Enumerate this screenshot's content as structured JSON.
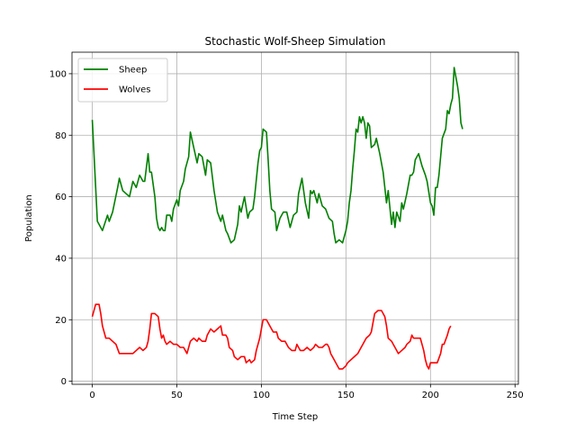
{
  "chart_data": {
    "type": "line",
    "title": "Stochastic Wolf-Sheep Simulation",
    "xlabel": "Time Step",
    "ylabel": "Population",
    "xlim": [
      -12,
      252
    ],
    "ylim": [
      -1,
      107
    ],
    "xticks": [
      0,
      50,
      100,
      150,
      200,
      250
    ],
    "yticks": [
      0,
      20,
      40,
      60,
      80,
      100
    ],
    "grid": true,
    "legend_position": "top-left",
    "series": [
      {
        "name": "Sheep",
        "color": "#008000",
        "points": [
          [
            0,
            85
          ],
          [
            3,
            52
          ],
          [
            6,
            49
          ],
          [
            9,
            54
          ],
          [
            10,
            52
          ],
          [
            12,
            55
          ],
          [
            15,
            63
          ],
          [
            16,
            66
          ],
          [
            18,
            62
          ],
          [
            20,
            61
          ],
          [
            22,
            60
          ],
          [
            24,
            65
          ],
          [
            26,
            63
          ],
          [
            28,
            67
          ],
          [
            30,
            65
          ],
          [
            31,
            65
          ],
          [
            33,
            74
          ],
          [
            34,
            68
          ],
          [
            35,
            68
          ],
          [
            37,
            60
          ],
          [
            38,
            53
          ],
          [
            39,
            50
          ],
          [
            40,
            49
          ],
          [
            41,
            50
          ],
          [
            42,
            49
          ],
          [
            43,
            49
          ],
          [
            44,
            54
          ],
          [
            46,
            54
          ],
          [
            47,
            52
          ],
          [
            48,
            56
          ],
          [
            50,
            59
          ],
          [
            51,
            57
          ],
          [
            52,
            62
          ],
          [
            54,
            65
          ],
          [
            55,
            69
          ],
          [
            57,
            73
          ],
          [
            58,
            81
          ],
          [
            60,
            76
          ],
          [
            62,
            71
          ],
          [
            63,
            74
          ],
          [
            65,
            73
          ],
          [
            67,
            67
          ],
          [
            68,
            72
          ],
          [
            70,
            71
          ],
          [
            72,
            62
          ],
          [
            74,
            55
          ],
          [
            76,
            52
          ],
          [
            77,
            54
          ],
          [
            79,
            49
          ],
          [
            80,
            48
          ],
          [
            82,
            45
          ],
          [
            84,
            46
          ],
          [
            86,
            51
          ],
          [
            87,
            57
          ],
          [
            88,
            55
          ],
          [
            90,
            60
          ],
          [
            92,
            53
          ],
          [
            93,
            55
          ],
          [
            95,
            56
          ],
          [
            96,
            60
          ],
          [
            98,
            71
          ],
          [
            99,
            75
          ],
          [
            100,
            76
          ],
          [
            101,
            82
          ],
          [
            103,
            81
          ],
          [
            104,
            72
          ],
          [
            105,
            62
          ],
          [
            106,
            56
          ],
          [
            108,
            55
          ],
          [
            109,
            49
          ],
          [
            111,
            53
          ],
          [
            113,
            55
          ],
          [
            115,
            55
          ],
          [
            117,
            50
          ],
          [
            119,
            54
          ],
          [
            121,
            55
          ],
          [
            122,
            61
          ],
          [
            124,
            66
          ],
          [
            126,
            58
          ],
          [
            128,
            53
          ],
          [
            129,
            62
          ],
          [
            130,
            61
          ],
          [
            131,
            62
          ],
          [
            133,
            58
          ],
          [
            134,
            61
          ],
          [
            136,
            57
          ],
          [
            138,
            56
          ],
          [
            140,
            53
          ],
          [
            142,
            52
          ],
          [
            143,
            48
          ],
          [
            144,
            45
          ],
          [
            146,
            46
          ],
          [
            148,
            45
          ],
          [
            150,
            49
          ],
          [
            151,
            52
          ],
          [
            152,
            58
          ],
          [
            153,
            62
          ],
          [
            154,
            69
          ],
          [
            155,
            75
          ],
          [
            156,
            82
          ],
          [
            157,
            81
          ],
          [
            158,
            86
          ],
          [
            159,
            84
          ],
          [
            160,
            86
          ],
          [
            161,
            84
          ],
          [
            162,
            79
          ],
          [
            163,
            84
          ],
          [
            164,
            83
          ],
          [
            165,
            76
          ],
          [
            167,
            77
          ],
          [
            168,
            79
          ],
          [
            170,
            74
          ],
          [
            172,
            68
          ],
          [
            174,
            58
          ],
          [
            175,
            62
          ],
          [
            177,
            51
          ],
          [
            178,
            55
          ],
          [
            179,
            50
          ],
          [
            180,
            55
          ],
          [
            182,
            52
          ],
          [
            183,
            58
          ],
          [
            184,
            56
          ],
          [
            186,
            61
          ],
          [
            188,
            67
          ],
          [
            189,
            67
          ],
          [
            190,
            68
          ],
          [
            191,
            72
          ],
          [
            192,
            73
          ],
          [
            193,
            74
          ],
          [
            195,
            70
          ],
          [
            197,
            67
          ],
          [
            198,
            65
          ],
          [
            200,
            58
          ],
          [
            201,
            57
          ],
          [
            202,
            54
          ],
          [
            203,
            63
          ],
          [
            204,
            63
          ],
          [
            205,
            67
          ],
          [
            206,
            73
          ],
          [
            207,
            79
          ],
          [
            209,
            82
          ],
          [
            210,
            88
          ],
          [
            211,
            87
          ],
          [
            212,
            90
          ],
          [
            213,
            92
          ],
          [
            214,
            102
          ],
          [
            215,
            99
          ],
          [
            216,
            96
          ],
          [
            217,
            92
          ],
          [
            218,
            84
          ],
          [
            219,
            82
          ]
        ]
      },
      {
        "name": "Wolves",
        "color": "#ff0000",
        "points": [
          [
            0,
            21
          ],
          [
            2,
            25
          ],
          [
            4,
            25
          ],
          [
            5,
            22
          ],
          [
            6,
            18
          ],
          [
            8,
            14
          ],
          [
            10,
            14
          ],
          [
            12,
            13
          ],
          [
            14,
            12
          ],
          [
            16,
            9
          ],
          [
            20,
            9
          ],
          [
            24,
            9
          ],
          [
            26,
            10
          ],
          [
            28,
            11
          ],
          [
            30,
            10
          ],
          [
            32,
            11
          ],
          [
            33,
            13
          ],
          [
            34,
            17
          ],
          [
            35,
            22
          ],
          [
            37,
            22
          ],
          [
            39,
            21
          ],
          [
            40,
            17
          ],
          [
            41,
            14
          ],
          [
            42,
            15
          ],
          [
            43,
            13
          ],
          [
            44,
            12
          ],
          [
            46,
            13
          ],
          [
            48,
            12
          ],
          [
            50,
            12
          ],
          [
            52,
            11
          ],
          [
            54,
            11
          ],
          [
            55,
            10
          ],
          [
            56,
            9
          ],
          [
            58,
            13
          ],
          [
            60,
            14
          ],
          [
            62,
            13
          ],
          [
            63,
            14
          ],
          [
            65,
            13
          ],
          [
            67,
            13
          ],
          [
            68,
            15
          ],
          [
            70,
            17
          ],
          [
            72,
            16
          ],
          [
            74,
            17
          ],
          [
            76,
            18
          ],
          [
            77,
            15
          ],
          [
            79,
            15
          ],
          [
            80,
            14
          ],
          [
            81,
            11
          ],
          [
            83,
            10
          ],
          [
            84,
            8
          ],
          [
            86,
            7
          ],
          [
            88,
            8
          ],
          [
            90,
            8
          ],
          [
            91,
            6
          ],
          [
            93,
            7
          ],
          [
            94,
            6
          ],
          [
            96,
            7
          ],
          [
            97,
            10
          ],
          [
            99,
            14
          ],
          [
            100,
            17
          ],
          [
            101,
            20
          ],
          [
            103,
            20
          ],
          [
            105,
            18
          ],
          [
            107,
            16
          ],
          [
            109,
            16
          ],
          [
            110,
            14
          ],
          [
            112,
            13
          ],
          [
            114,
            13
          ],
          [
            116,
            11
          ],
          [
            118,
            10
          ],
          [
            120,
            10
          ],
          [
            121,
            12
          ],
          [
            123,
            10
          ],
          [
            125,
            10
          ],
          [
            127,
            11
          ],
          [
            129,
            10
          ],
          [
            131,
            11
          ],
          [
            132,
            12
          ],
          [
            134,
            11
          ],
          [
            136,
            11
          ],
          [
            138,
            12
          ],
          [
            139,
            12
          ],
          [
            140,
            11
          ],
          [
            141,
            9
          ],
          [
            143,
            7
          ],
          [
            145,
            5
          ],
          [
            146,
            4
          ],
          [
            148,
            4
          ],
          [
            150,
            5
          ],
          [
            151,
            6
          ],
          [
            153,
            7
          ],
          [
            155,
            8
          ],
          [
            157,
            9
          ],
          [
            158,
            10
          ],
          [
            160,
            12
          ],
          [
            162,
            14
          ],
          [
            164,
            15
          ],
          [
            165,
            16
          ],
          [
            166,
            19
          ],
          [
            167,
            22
          ],
          [
            169,
            23
          ],
          [
            171,
            23
          ],
          [
            172,
            22
          ],
          [
            173,
            21
          ],
          [
            174,
            18
          ],
          [
            175,
            14
          ],
          [
            177,
            13
          ],
          [
            178,
            12
          ],
          [
            180,
            10
          ],
          [
            181,
            9
          ],
          [
            183,
            10
          ],
          [
            185,
            11
          ],
          [
            186,
            12
          ],
          [
            188,
            13
          ],
          [
            189,
            15
          ],
          [
            190,
            14
          ],
          [
            192,
            14
          ],
          [
            194,
            14
          ],
          [
            195,
            12
          ],
          [
            196,
            10
          ],
          [
            197,
            7
          ],
          [
            198,
            5
          ],
          [
            199,
            4
          ],
          [
            200,
            6
          ],
          [
            202,
            6
          ],
          [
            204,
            6
          ],
          [
            206,
            9
          ],
          [
            207,
            12
          ],
          [
            208,
            12
          ],
          [
            210,
            15
          ],
          [
            211,
            17
          ],
          [
            212,
            18
          ]
        ]
      }
    ]
  }
}
